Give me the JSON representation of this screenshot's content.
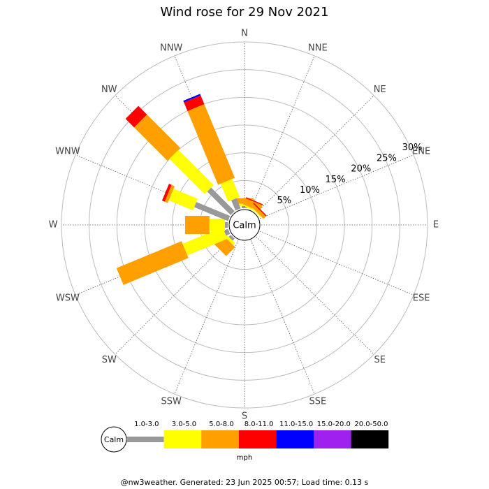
{
  "chart_data": {
    "type": "windrose",
    "title": "Wind rose for 29 Nov 2021",
    "directions": [
      "N",
      "NNE",
      "NE",
      "ENE",
      "E",
      "ESE",
      "SE",
      "SSE",
      "S",
      "SSW",
      "SW",
      "WSW",
      "W",
      "WNW",
      "NW",
      "NNW"
    ],
    "calm_label": "Calm",
    "unit": "mph",
    "rlim": [
      0,
      30
    ],
    "rticks": [
      {
        "value": 5,
        "label": "5%"
      },
      {
        "value": 10,
        "label": "10%"
      },
      {
        "value": 15,
        "label": "15%"
      },
      {
        "value": 20,
        "label": "20%"
      },
      {
        "value": 25,
        "label": "25%"
      },
      {
        "value": 30,
        "label": "30%"
      }
    ],
    "series": [
      {
        "name": "1.0-3.0",
        "color": "#999999",
        "values": [
          0.4,
          0,
          0,
          0,
          0,
          0,
          0,
          0,
          0,
          0,
          0.5,
          0.8,
          0.5,
          6.6,
          6.0,
          2.0
        ]
      },
      {
        "name": "3.0-5.0",
        "color": "#ffff00",
        "values": [
          0.4,
          0.3,
          0.2,
          0,
          0,
          0,
          0,
          0,
          0,
          0,
          0.5,
          7.8,
          2.8,
          4.7,
          9.0,
          3.5
        ]
      },
      {
        "name": "5.0-8.0",
        "color": "#ffa000",
        "values": [
          1.0,
          1.2,
          0.6,
          0,
          0,
          0,
          0,
          0,
          0,
          0,
          2.3,
          12.7,
          4.4,
          0.6,
          8.5,
          14.4
        ]
      },
      {
        "name": "8.0-11.0",
        "color": "#ff0000",
        "values": [
          0,
          0.2,
          0.2,
          0,
          0,
          0,
          0,
          0,
          0,
          0,
          0,
          0,
          0,
          0.5,
          2.2,
          1.7
        ]
      },
      {
        "name": "11.0-15.0",
        "color": "#0000ff",
        "values": [
          0,
          0,
          0,
          0,
          0,
          0,
          0,
          0,
          0,
          0,
          0,
          0,
          0,
          0,
          0,
          0.3
        ]
      },
      {
        "name": "15.0-20.0",
        "color": "#a020f0",
        "values": [
          0,
          0,
          0,
          0,
          0,
          0,
          0,
          0,
          0,
          0,
          0,
          0,
          0,
          0,
          0,
          0
        ]
      },
      {
        "name": "20.0-50.0",
        "color": "#000000",
        "values": [
          0,
          0,
          0,
          0,
          0,
          0,
          0,
          0,
          0,
          0,
          0,
          0,
          0,
          0,
          0,
          0
        ]
      }
    ]
  },
  "footer": "@nw3weather.  Generated: 23 Jun 2025 00:57; Load time: 0.13 s"
}
